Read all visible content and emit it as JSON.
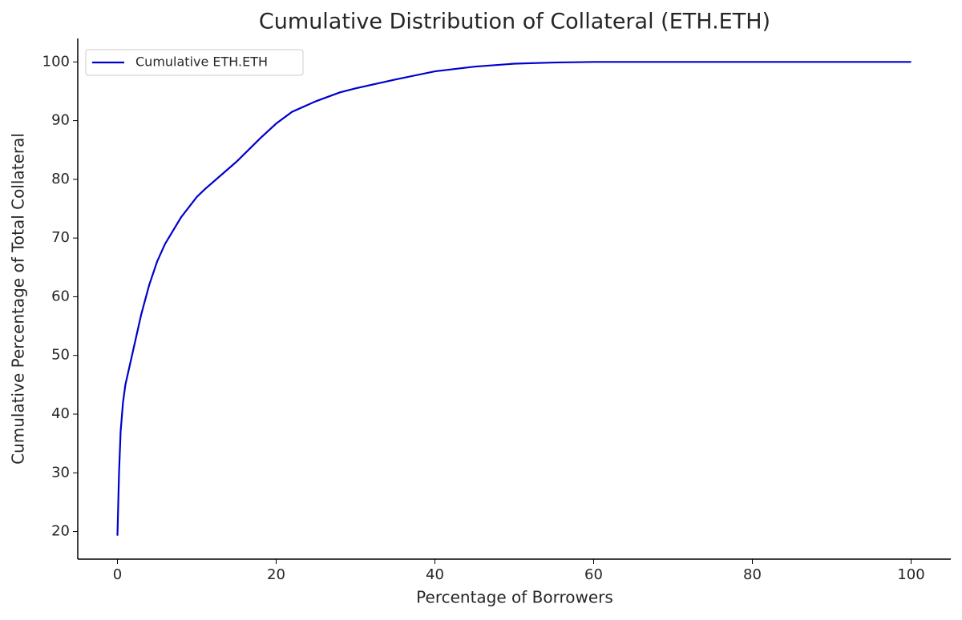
{
  "chart_data": {
    "type": "line",
    "title": "Cumulative Distribution of Collateral (ETH.ETH)",
    "xlabel": "Percentage of Borrowers",
    "ylabel": "Cumulative Percentage of Total Collateral",
    "x": [
      0,
      0.2,
      0.4,
      0.7,
      1,
      2,
      3,
      4,
      5,
      6,
      8,
      10,
      11,
      15,
      18,
      20,
      22,
      25,
      28,
      30,
      35,
      40,
      45,
      50,
      55,
      60,
      100
    ],
    "series": [
      {
        "name": "Cumulative ETH.ETH",
        "color": "#0000cd",
        "values": [
          19.3,
          30,
          37,
          42,
          45,
          51,
          57,
          62,
          66,
          69,
          73.5,
          77,
          78.3,
          83,
          87,
          89.5,
          91.5,
          93.3,
          94.8,
          95.5,
          97,
          98.4,
          99.2,
          99.7,
          99.9,
          100,
          100
        ]
      }
    ],
    "xlim": [
      -5,
      105
    ],
    "xticks": [
      0,
      20,
      40,
      60,
      80,
      100
    ],
    "ylim": [
      15.3,
      104
    ],
    "yticks": [
      20,
      30,
      40,
      50,
      60,
      70,
      80,
      90,
      100
    ],
    "grid": false,
    "legend": "upper-left"
  }
}
